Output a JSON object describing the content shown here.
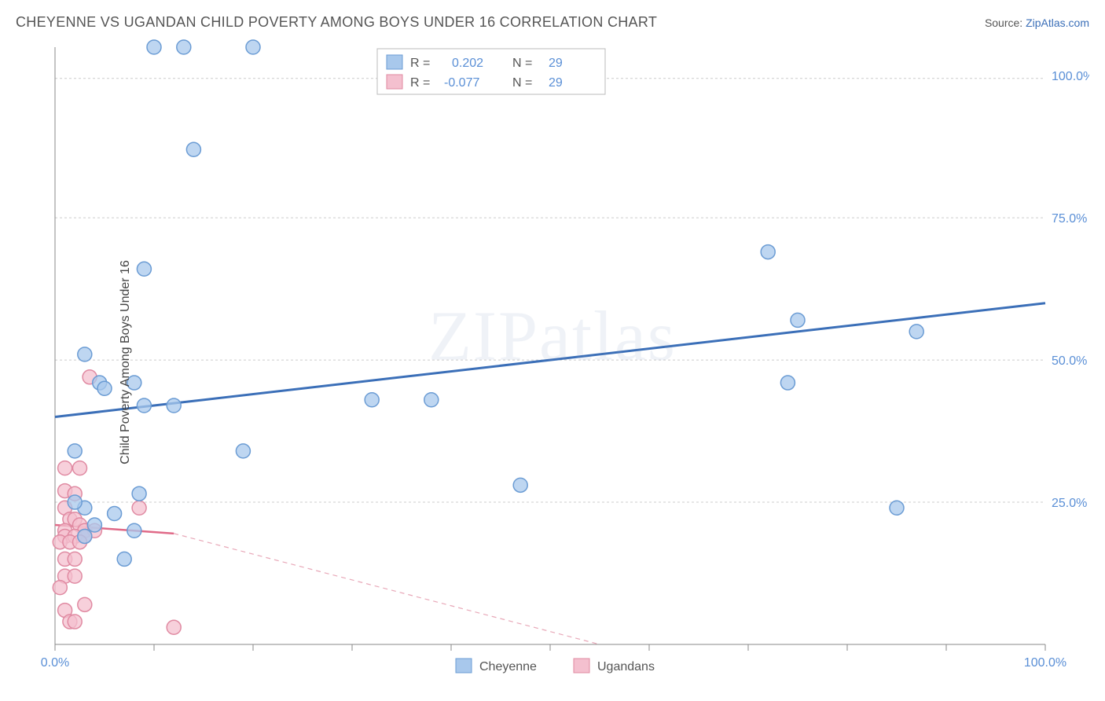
{
  "header": {
    "title": "CHEYENNE VS UGANDAN CHILD POVERTY AMONG BOYS UNDER 16 CORRELATION CHART",
    "source_prefix": "Source: ",
    "source_link": "ZipAtlas.com"
  },
  "chart": {
    "type": "scatter",
    "ylabel": "Child Poverty Among Boys Under 16",
    "watermark": "ZIPatlas",
    "background_color": "#ffffff",
    "grid_color": "#cccccc",
    "axis_color": "#888888",
    "tick_label_color": "#5a8fd6",
    "xlim": [
      0,
      100
    ],
    "ylim": [
      0,
      105
    ],
    "x_ticks": [
      0,
      10,
      20,
      30,
      40,
      50,
      60,
      70,
      80,
      90,
      100
    ],
    "x_tick_labels_shown": {
      "0": "0.0%",
      "100": "100.0%"
    },
    "y_gridlines": [
      25,
      50,
      75,
      99.5
    ],
    "y_tick_labels": {
      "25": "25.0%",
      "50": "50.0%",
      "75": "75.0%",
      "100": "100.0%"
    },
    "marker_radius": 9,
    "marker_stroke_width": 1.5,
    "series": [
      {
        "name": "Cheyenne",
        "fill": "#a8c8ec",
        "stroke": "#6b9cd4",
        "line_color": "#3b6fb8",
        "r_value": "0.202",
        "n_value": "29",
        "points": [
          [
            10,
            105
          ],
          [
            13,
            105
          ],
          [
            20,
            105
          ],
          [
            14,
            87
          ],
          [
            9,
            66
          ],
          [
            72,
            69
          ],
          [
            75,
            57
          ],
          [
            87,
            55
          ],
          [
            3,
            51
          ],
          [
            8,
            46
          ],
          [
            4.5,
            46
          ],
          [
            5,
            45
          ],
          [
            9,
            42
          ],
          [
            12,
            42
          ],
          [
            74,
            46
          ],
          [
            32,
            43
          ],
          [
            38,
            43
          ],
          [
            19,
            34
          ],
          [
            2,
            34
          ],
          [
            47,
            28
          ],
          [
            8.5,
            26.5
          ],
          [
            85,
            24
          ],
          [
            3,
            24
          ],
          [
            6,
            23
          ],
          [
            4,
            21
          ],
          [
            8,
            20
          ],
          [
            2,
            25
          ],
          [
            3,
            19
          ],
          [
            7,
            15
          ]
        ],
        "trend": {
          "x1": 0,
          "y1": 40,
          "x2": 100,
          "y2": 60
        }
      },
      {
        "name": "Ugandans",
        "fill": "#f4c0cf",
        "stroke": "#e08aa2",
        "line_color": "#e06a88",
        "r_value": "-0.077",
        "n_value": "29",
        "points": [
          [
            3.5,
            47
          ],
          [
            1,
            31
          ],
          [
            2.5,
            31
          ],
          [
            1,
            27
          ],
          [
            2,
            26.5
          ],
          [
            8.5,
            24
          ],
          [
            1,
            24
          ],
          [
            1.5,
            22
          ],
          [
            2,
            22
          ],
          [
            2.5,
            21
          ],
          [
            1,
            20
          ],
          [
            3,
            20
          ],
          [
            4,
            20
          ],
          [
            1,
            19
          ],
          [
            2,
            19
          ],
          [
            3,
            19
          ],
          [
            0.5,
            18
          ],
          [
            1.5,
            18
          ],
          [
            2.5,
            18
          ],
          [
            1,
            15
          ],
          [
            2,
            15
          ],
          [
            1,
            12
          ],
          [
            2,
            12
          ],
          [
            0.5,
            10
          ],
          [
            1,
            6
          ],
          [
            3,
            7
          ],
          [
            1.5,
            4
          ],
          [
            2,
            4
          ],
          [
            12,
            3
          ]
        ],
        "trend_solid": {
          "x1": 0,
          "y1": 21,
          "x2": 12,
          "y2": 19.5
        },
        "trend_dash": {
          "x1": 12,
          "y1": 19.5,
          "x2": 55,
          "y2": 0
        }
      }
    ],
    "stats_legend": {
      "r_label": "R =",
      "n_label": "N ="
    },
    "bottom_legend": {
      "items": [
        "Cheyenne",
        "Ugandans"
      ]
    }
  }
}
